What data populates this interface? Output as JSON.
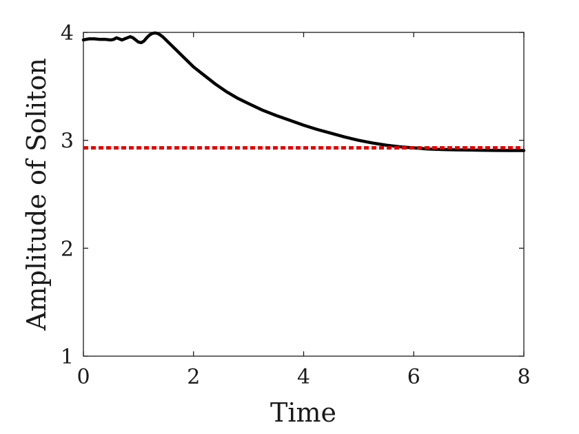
{
  "chart_data": {
    "type": "line",
    "title": "",
    "xlabel": "Time",
    "ylabel": "Amplitude of Soliton",
    "xlim": [
      0,
      8
    ],
    "ylim": [
      1,
      4
    ],
    "x_ticks": [
      0,
      2,
      4,
      6,
      8
    ],
    "y_ticks": [
      1,
      2,
      3,
      4
    ],
    "x_tick_labels": [
      "0",
      "2",
      "4",
      "6",
      "8"
    ],
    "y_tick_labels": [
      "1",
      "2",
      "3",
      "4"
    ],
    "grid": false,
    "series": [
      {
        "color": "#000000",
        "style": "solid",
        "x": [
          0,
          0.1,
          0.2,
          0.3,
          0.4,
          0.5,
          0.55,
          0.6,
          0.65,
          0.7,
          0.75,
          0.8,
          0.85,
          0.9,
          0.95,
          1.0,
          1.05,
          1.1,
          1.15,
          1.2,
          1.25,
          1.3,
          1.35,
          1.4,
          1.45,
          1.5,
          1.6,
          1.7,
          1.8,
          2.0,
          2.2,
          2.4,
          2.6,
          2.8,
          3.0,
          3.25,
          3.5,
          3.75,
          4.0,
          4.25,
          4.5,
          4.75,
          5.0,
          5.25,
          5.5,
          5.75,
          6.0,
          6.25,
          6.5,
          6.75,
          7.0,
          7.25,
          7.5,
          7.75,
          8.0
        ],
        "y": [
          3.93,
          3.94,
          3.94,
          3.935,
          3.935,
          3.93,
          3.935,
          3.95,
          3.94,
          3.93,
          3.94,
          3.95,
          3.96,
          3.95,
          3.93,
          3.91,
          3.905,
          3.92,
          3.95,
          3.975,
          3.99,
          3.995,
          3.99,
          3.975,
          3.955,
          3.93,
          3.88,
          3.83,
          3.78,
          3.68,
          3.6,
          3.52,
          3.45,
          3.39,
          3.34,
          3.28,
          3.23,
          3.185,
          3.14,
          3.1,
          3.065,
          3.03,
          3.0,
          2.975,
          2.955,
          2.94,
          2.93,
          2.92,
          2.915,
          2.912,
          2.91,
          2.908,
          2.906,
          2.905,
          2.905
        ]
      },
      {
        "color": "#e00000",
        "style": "dotted",
        "x": [
          0,
          8
        ],
        "y": [
          2.93,
          2.93
        ]
      }
    ]
  }
}
